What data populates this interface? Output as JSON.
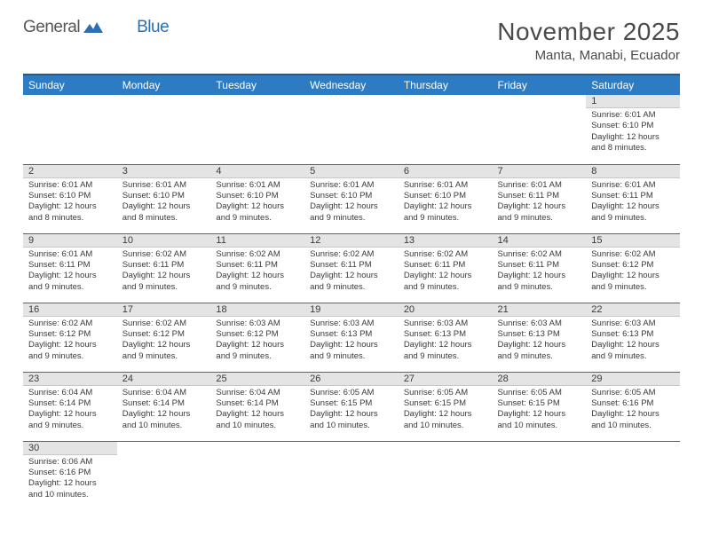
{
  "logo": {
    "text1": "General",
    "text2": "Blue"
  },
  "title": "November 2025",
  "location": "Manta, Manabi, Ecuador",
  "colors": {
    "header_bg": "#2d7bc3",
    "header_border_top": "#1f5a94",
    "row_divider": "#2d6fb5",
    "daynum_bg": "#e4e4e4",
    "text": "#3a3a3a",
    "logo_gray": "#575757",
    "logo_blue": "#2d6fb5"
  },
  "weekdays": [
    "Sunday",
    "Monday",
    "Tuesday",
    "Wednesday",
    "Thursday",
    "Friday",
    "Saturday"
  ],
  "grid": [
    [
      null,
      null,
      null,
      null,
      null,
      null,
      {
        "d": "1",
        "sr": "6:01 AM",
        "ss": "6:10 PM",
        "dl": "12 hours and 8 minutes."
      }
    ],
    [
      {
        "d": "2",
        "sr": "6:01 AM",
        "ss": "6:10 PM",
        "dl": "12 hours and 8 minutes."
      },
      {
        "d": "3",
        "sr": "6:01 AM",
        "ss": "6:10 PM",
        "dl": "12 hours and 8 minutes."
      },
      {
        "d": "4",
        "sr": "6:01 AM",
        "ss": "6:10 PM",
        "dl": "12 hours and 9 minutes."
      },
      {
        "d": "5",
        "sr": "6:01 AM",
        "ss": "6:10 PM",
        "dl": "12 hours and 9 minutes."
      },
      {
        "d": "6",
        "sr": "6:01 AM",
        "ss": "6:10 PM",
        "dl": "12 hours and 9 minutes."
      },
      {
        "d": "7",
        "sr": "6:01 AM",
        "ss": "6:11 PM",
        "dl": "12 hours and 9 minutes."
      },
      {
        "d": "8",
        "sr": "6:01 AM",
        "ss": "6:11 PM",
        "dl": "12 hours and 9 minutes."
      }
    ],
    [
      {
        "d": "9",
        "sr": "6:01 AM",
        "ss": "6:11 PM",
        "dl": "12 hours and 9 minutes."
      },
      {
        "d": "10",
        "sr": "6:02 AM",
        "ss": "6:11 PM",
        "dl": "12 hours and 9 minutes."
      },
      {
        "d": "11",
        "sr": "6:02 AM",
        "ss": "6:11 PM",
        "dl": "12 hours and 9 minutes."
      },
      {
        "d": "12",
        "sr": "6:02 AM",
        "ss": "6:11 PM",
        "dl": "12 hours and 9 minutes."
      },
      {
        "d": "13",
        "sr": "6:02 AM",
        "ss": "6:11 PM",
        "dl": "12 hours and 9 minutes."
      },
      {
        "d": "14",
        "sr": "6:02 AM",
        "ss": "6:11 PM",
        "dl": "12 hours and 9 minutes."
      },
      {
        "d": "15",
        "sr": "6:02 AM",
        "ss": "6:12 PM",
        "dl": "12 hours and 9 minutes."
      }
    ],
    [
      {
        "d": "16",
        "sr": "6:02 AM",
        "ss": "6:12 PM",
        "dl": "12 hours and 9 minutes."
      },
      {
        "d": "17",
        "sr": "6:02 AM",
        "ss": "6:12 PM",
        "dl": "12 hours and 9 minutes."
      },
      {
        "d": "18",
        "sr": "6:03 AM",
        "ss": "6:12 PM",
        "dl": "12 hours and 9 minutes."
      },
      {
        "d": "19",
        "sr": "6:03 AM",
        "ss": "6:13 PM",
        "dl": "12 hours and 9 minutes."
      },
      {
        "d": "20",
        "sr": "6:03 AM",
        "ss": "6:13 PM",
        "dl": "12 hours and 9 minutes."
      },
      {
        "d": "21",
        "sr": "6:03 AM",
        "ss": "6:13 PM",
        "dl": "12 hours and 9 minutes."
      },
      {
        "d": "22",
        "sr": "6:03 AM",
        "ss": "6:13 PM",
        "dl": "12 hours and 9 minutes."
      }
    ],
    [
      {
        "d": "23",
        "sr": "6:04 AM",
        "ss": "6:14 PM",
        "dl": "12 hours and 9 minutes."
      },
      {
        "d": "24",
        "sr": "6:04 AM",
        "ss": "6:14 PM",
        "dl": "12 hours and 10 minutes."
      },
      {
        "d": "25",
        "sr": "6:04 AM",
        "ss": "6:14 PM",
        "dl": "12 hours and 10 minutes."
      },
      {
        "d": "26",
        "sr": "6:05 AM",
        "ss": "6:15 PM",
        "dl": "12 hours and 10 minutes."
      },
      {
        "d": "27",
        "sr": "6:05 AM",
        "ss": "6:15 PM",
        "dl": "12 hours and 10 minutes."
      },
      {
        "d": "28",
        "sr": "6:05 AM",
        "ss": "6:15 PM",
        "dl": "12 hours and 10 minutes."
      },
      {
        "d": "29",
        "sr": "6:05 AM",
        "ss": "6:16 PM",
        "dl": "12 hours and 10 minutes."
      }
    ],
    [
      {
        "d": "30",
        "sr": "6:06 AM",
        "ss": "6:16 PM",
        "dl": "12 hours and 10 minutes."
      },
      null,
      null,
      null,
      null,
      null,
      null
    ]
  ],
  "labels": {
    "sunrise": "Sunrise:",
    "sunset": "Sunset:",
    "daylight": "Daylight:"
  }
}
